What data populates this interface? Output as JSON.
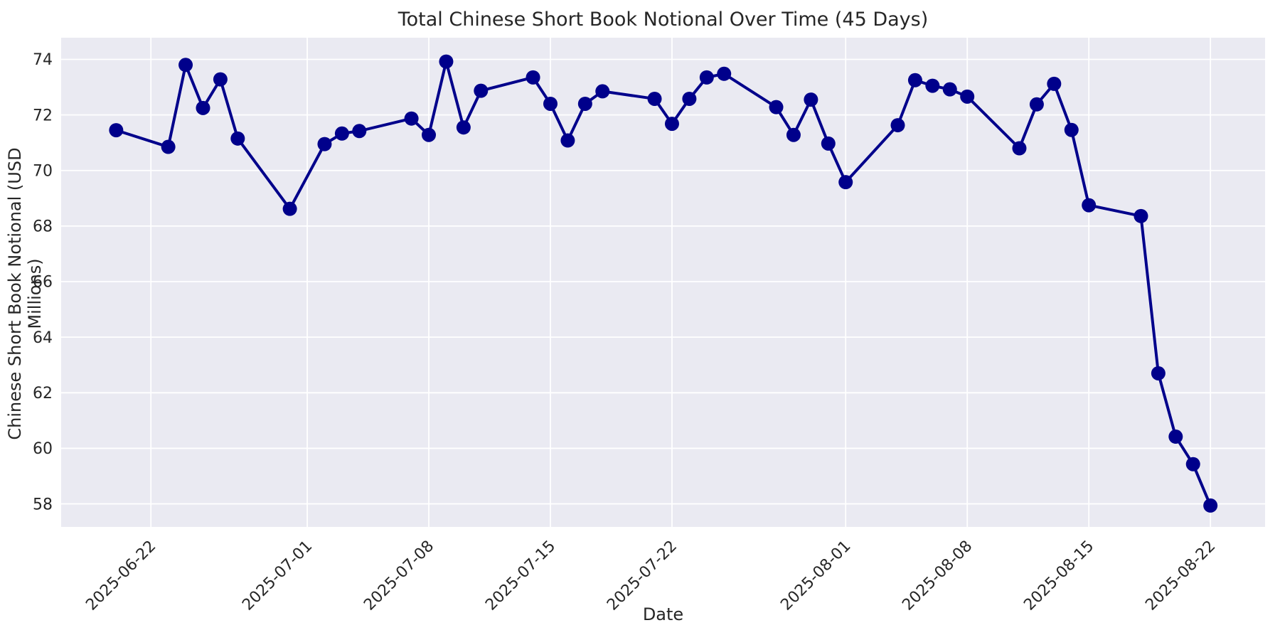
{
  "chart_data": {
    "type": "line",
    "title": "Total Chinese Short Book Notional Over Time (45 Days)",
    "xlabel": "Date",
    "ylabel": "Chinese Short Book Notional (USD Millions)",
    "x": [
      "2025-06-20",
      "2025-06-23",
      "2025-06-24",
      "2025-06-25",
      "2025-06-26",
      "2025-06-27",
      "2025-06-30",
      "2025-07-02",
      "2025-07-03",
      "2025-07-04",
      "2025-07-07",
      "2025-07-08",
      "2025-07-09",
      "2025-07-10",
      "2025-07-11",
      "2025-07-14",
      "2025-07-15",
      "2025-07-16",
      "2025-07-17",
      "2025-07-18",
      "2025-07-21",
      "2025-07-22",
      "2025-07-23",
      "2025-07-24",
      "2025-07-25",
      "2025-07-28",
      "2025-07-29",
      "2025-07-30",
      "2025-07-31",
      "2025-08-01",
      "2025-08-04",
      "2025-08-05",
      "2025-08-06",
      "2025-08-07",
      "2025-08-08",
      "2025-08-11",
      "2025-08-12",
      "2025-08-13",
      "2025-08-14",
      "2025-08-15",
      "2025-08-18",
      "2025-08-19",
      "2025-08-20",
      "2025-08-21",
      "2025-08-22"
    ],
    "values": [
      71.45,
      70.85,
      73.8,
      72.25,
      73.28,
      71.15,
      68.62,
      70.95,
      71.33,
      71.42,
      71.87,
      71.28,
      73.92,
      71.55,
      72.87,
      73.35,
      72.4,
      71.08,
      72.4,
      72.85,
      72.58,
      71.68,
      72.58,
      73.35,
      73.48,
      72.28,
      71.28,
      72.55,
      70.97,
      69.58,
      71.63,
      73.25,
      73.05,
      72.92,
      72.66,
      70.8,
      72.38,
      73.12,
      71.46,
      68.75,
      68.36,
      62.7,
      60.42,
      59.43,
      57.94
    ],
    "x_tick_labels": [
      "2025-06-22",
      "2025-07-01",
      "2025-07-08",
      "2025-07-15",
      "2025-07-22",
      "2025-08-01",
      "2025-08-08",
      "2025-08-15",
      "2025-08-22"
    ],
    "y_ticks": [
      58,
      60,
      62,
      64,
      66,
      68,
      70,
      72,
      74
    ],
    "ylim": [
      57.17,
      74.78
    ],
    "xlim": [
      "2025-06-16T20:00:00",
      "2025-08-25T03:30:00"
    ],
    "grid": true,
    "legend": "none",
    "marker": "circle",
    "colors": {
      "line": "#00008B",
      "plot_bg": "#EAEAF2",
      "grid": "#FFFFFF",
      "text": "#262626"
    }
  }
}
